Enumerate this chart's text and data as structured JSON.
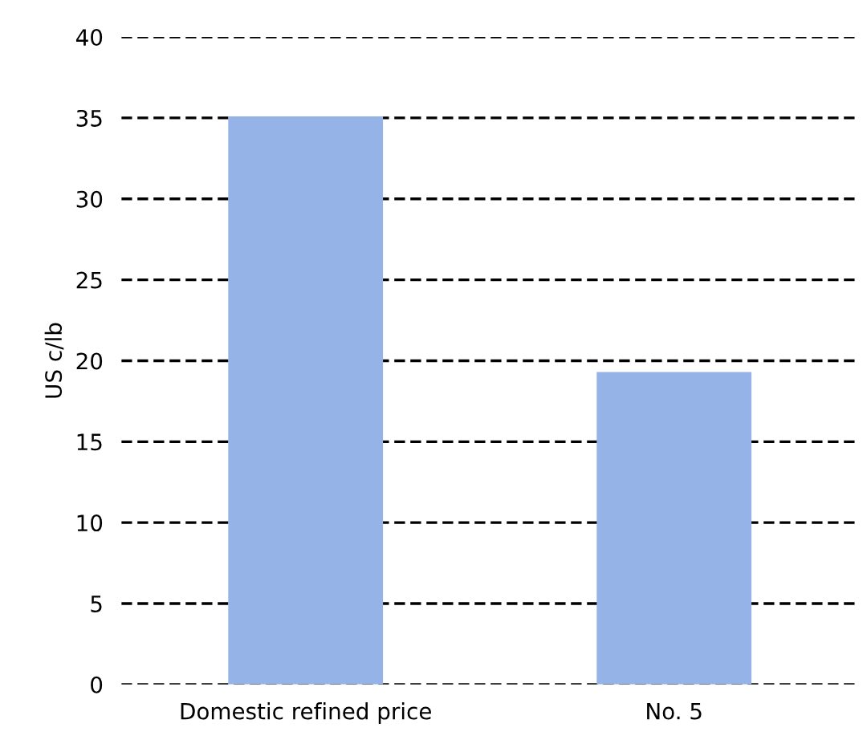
{
  "chart_data": {
    "type": "bar",
    "ylabel": "US c/lb",
    "categories": [
      "Domestic refined price",
      "No. 5"
    ],
    "values": [
      35.1,
      19.3
    ],
    "color": "#95b3e6",
    "ylim": [
      0,
      40
    ],
    "yticks": [
      0,
      5,
      10,
      15,
      20,
      25,
      30,
      35,
      40
    ],
    "grid": "y"
  }
}
